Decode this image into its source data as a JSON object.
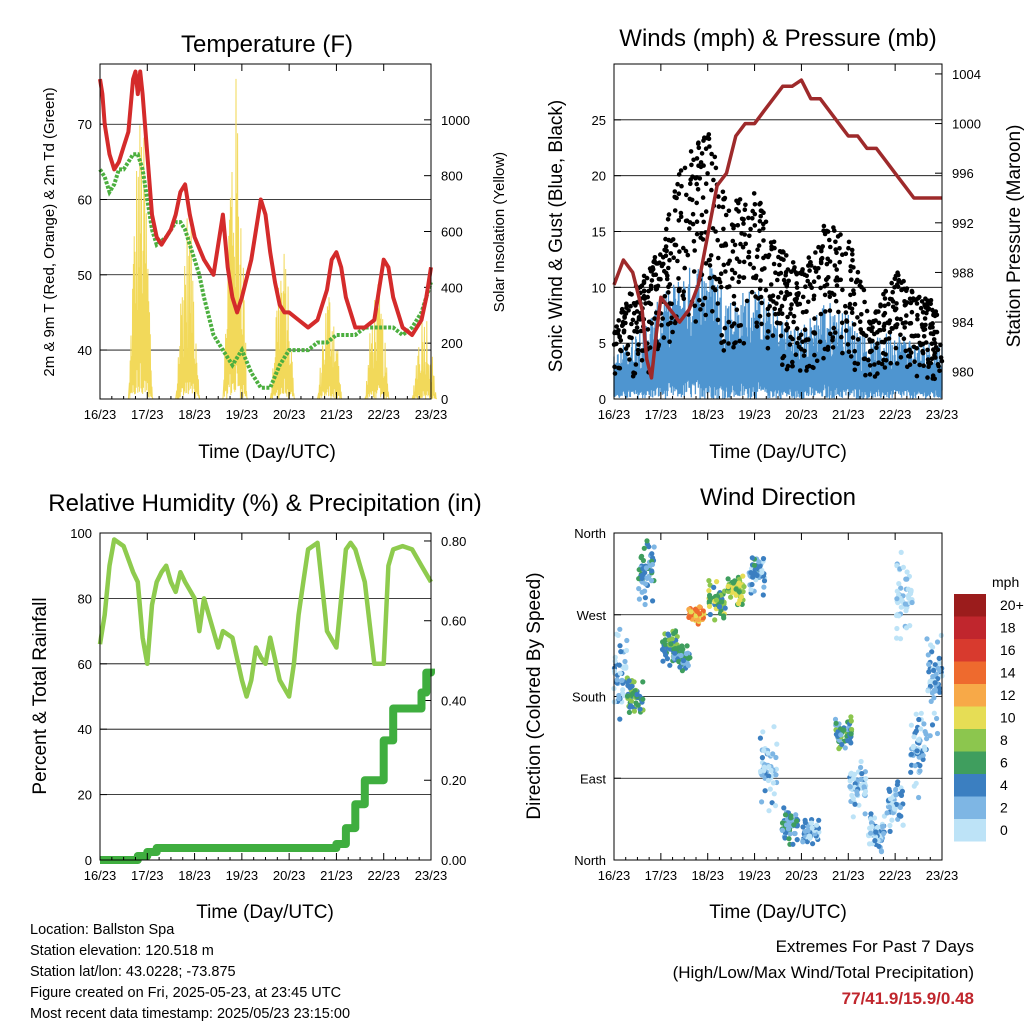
{
  "chart_data": [
    {
      "type": "line",
      "title": "Temperature (F)",
      "xlabel": "Time (Day/UTC)",
      "ylabel": "2m & 9m T (Red, Orange) & 2m Td (Green)",
      "y2label": "Solar Insolation (Yellow)",
      "categories": [
        "16/23",
        "17/23",
        "18/23",
        "19/23",
        "20/23",
        "21/23",
        "22/23",
        "23/23"
      ],
      "ylim": [
        33.5,
        78
      ],
      "yticks": [
        40,
        50,
        60,
        70
      ],
      "y2lim": [
        0,
        1200
      ],
      "y2ticks": [
        0,
        200,
        400,
        600,
        800,
        1000
      ],
      "series": [
        {
          "name": "2m T",
          "color": "#d42b2b",
          "x": [
            0,
            0.05,
            0.1,
            0.2,
            0.3,
            0.4,
            0.5,
            0.6,
            0.7,
            0.75,
            0.8,
            0.85,
            0.9,
            1.0,
            1.1,
            1.2,
            1.3,
            1.4,
            1.5,
            1.6,
            1.7,
            1.8,
            1.9,
            2.0,
            2.2,
            2.4,
            2.5,
            2.6,
            2.7,
            2.8,
            2.9,
            3.0,
            3.2,
            3.4,
            3.5,
            3.6,
            3.7,
            3.8,
            3.9,
            4.0,
            4.2,
            4.4,
            4.6,
            4.8,
            4.9,
            5.0,
            5.1,
            5.2,
            5.4,
            5.6,
            5.8,
            5.9,
            6.0,
            6.1,
            6.2,
            6.4,
            6.6,
            6.8,
            6.9,
            7.0
          ],
          "values": [
            76,
            74,
            70,
            66,
            64,
            65,
            67,
            69,
            76,
            77,
            74,
            77,
            74,
            66,
            58,
            55,
            54,
            55,
            56,
            58,
            61,
            62,
            58,
            55,
            52,
            50,
            54,
            58,
            51,
            47,
            45,
            47,
            52,
            60,
            58,
            53,
            49,
            46,
            45,
            45,
            44,
            43,
            44,
            48,
            52,
            53,
            51,
            47,
            43,
            43,
            44,
            48,
            52,
            51,
            47,
            43,
            42,
            44,
            47,
            51
          ]
        },
        {
          "name": "2m Td",
          "color": "#4caf3f",
          "x": [
            0,
            0.1,
            0.2,
            0.3,
            0.4,
            0.5,
            0.6,
            0.7,
            0.8,
            0.9,
            1.0,
            1.1,
            1.2,
            1.4,
            1.6,
            1.7,
            1.8,
            1.9,
            2.0,
            2.1,
            2.2,
            2.4,
            2.6,
            2.8,
            3.0,
            3.2,
            3.4,
            3.6,
            3.8,
            4.0,
            4.2,
            4.4,
            4.6,
            4.8,
            5.0,
            5.2,
            5.4,
            5.6,
            5.8,
            6.0,
            6.2,
            6.4,
            6.6,
            6.8,
            7.0
          ],
          "values": [
            64,
            63,
            61,
            62,
            64,
            64,
            65,
            66,
            66,
            64,
            60,
            56,
            54,
            55,
            57,
            57,
            56,
            54,
            52,
            50,
            47,
            42,
            40,
            38,
            40,
            37,
            35,
            35,
            38,
            40,
            40,
            40,
            41,
            41,
            42,
            42,
            42,
            43,
            43,
            43,
            43,
            42,
            43,
            45,
            49
          ]
        }
      ],
      "insolation": {
        "name": "Solar Insolation",
        "color": "#f2d95a",
        "peaks": [
          {
            "day": 0.86,
            "value": 1050
          },
          {
            "day": 1.86,
            "value": 700
          },
          {
            "day": 2.86,
            "value": 1180
          },
          {
            "day": 3.86,
            "value": 560
          },
          {
            "day": 4.86,
            "value": 420
          },
          {
            "day": 5.86,
            "value": 420
          },
          {
            "day": 6.86,
            "value": 340
          }
        ]
      }
    },
    {
      "type": "scatter",
      "title": "Winds (mph) & Pressure (mb)",
      "xlabel": "Time (Day/UTC)",
      "ylabel": "Sonic Wind & Gust (Blue, Black)",
      "y2label": "Station Pressure (Maroon)",
      "categories": [
        "16/23",
        "17/23",
        "18/23",
        "19/23",
        "20/23",
        "21/23",
        "22/23",
        "23/23"
      ],
      "ylim": [
        0,
        30
      ],
      "yticks": [
        0,
        5,
        10,
        15,
        20,
        25
      ],
      "y2lim": [
        977.8,
        1004.8
      ],
      "y2ticks": [
        980,
        984,
        988,
        992,
        996,
        1000,
        1004
      ],
      "gust_envelope": {
        "x": [
          0,
          0.5,
          1,
          1.5,
          2,
          2.5,
          3,
          3.5,
          4,
          4.5,
          5,
          5.5,
          6,
          6.5,
          7
        ],
        "values": [
          7,
          10,
          13,
          21,
          23,
          17,
          18,
          13,
          11,
          15,
          14,
          7,
          11,
          9,
          8
        ]
      },
      "wind_envelope": {
        "x": [
          0,
          0.5,
          1,
          1.5,
          2,
          2.5,
          3,
          3.5,
          4,
          4.5,
          5,
          5.5,
          6,
          6.5,
          7
        ],
        "values": [
          3,
          5,
          7,
          9,
          10,
          7,
          8,
          6,
          5,
          7,
          6,
          4,
          5,
          4,
          4
        ]
      },
      "pressure": {
        "name": "Station Pressure",
        "color": "#9e2a2b",
        "x": [
          0,
          0.2,
          0.4,
          0.6,
          0.7,
          0.8,
          0.9,
          1.0,
          1.2,
          1.4,
          1.6,
          1.8,
          2.0,
          2.2,
          2.4,
          2.6,
          2.8,
          3.0,
          3.2,
          3.4,
          3.6,
          3.8,
          4.0,
          4.2,
          4.4,
          4.6,
          4.8,
          5.0,
          5.2,
          5.4,
          5.6,
          5.8,
          6.0,
          6.2,
          6.4,
          6.6,
          6.8,
          7.0
        ],
        "values": [
          987,
          989,
          988,
          985,
          981,
          979.5,
          983,
          986,
          985,
          984,
          985,
          987,
          991,
          995,
          996,
          999,
          1000,
          1000,
          1001,
          1002,
          1003,
          1003,
          1003.5,
          1002,
          1002,
          1001,
          1000,
          999,
          999,
          998,
          998,
          997,
          996,
          995,
          994,
          994,
          994,
          994
        ]
      }
    },
    {
      "type": "line",
      "title": "Relative Humidity (%) & Precipitation (in)",
      "xlabel": "Time (Day/UTC)",
      "ylabel": "Percent & Total Rainfall",
      "categories": [
        "16/23",
        "17/23",
        "18/23",
        "19/23",
        "20/23",
        "21/23",
        "22/23",
        "23/23"
      ],
      "ylim": [
        0,
        100
      ],
      "yticks": [
        0,
        20,
        40,
        60,
        80,
        100
      ],
      "y2lim": [
        0,
        0.82
      ],
      "y2ticks": [
        0.0,
        0.2,
        0.4,
        0.6,
        0.8
      ],
      "series": [
        {
          "name": "Relative Humidity",
          "color": "#8ecb4e",
          "x": [
            0,
            0.1,
            0.2,
            0.3,
            0.5,
            0.7,
            0.8,
            0.9,
            1.0,
            1.1,
            1.2,
            1.3,
            1.4,
            1.5,
            1.6,
            1.7,
            1.8,
            2.0,
            2.1,
            2.2,
            2.4,
            2.5,
            2.6,
            2.8,
            3.0,
            3.1,
            3.2,
            3.3,
            3.4,
            3.5,
            3.6,
            3.8,
            4.0,
            4.1,
            4.2,
            4.3,
            4.4,
            4.6,
            4.8,
            5.0,
            5.2,
            5.3,
            5.4,
            5.6,
            5.8,
            6.0,
            6.1,
            6.2,
            6.4,
            6.6,
            6.8,
            7.0
          ],
          "values": [
            66,
            75,
            90,
            98,
            96,
            88,
            85,
            68,
            60,
            78,
            85,
            88,
            90,
            85,
            82,
            88,
            85,
            80,
            70,
            80,
            70,
            65,
            70,
            68,
            55,
            50,
            55,
            65,
            62,
            60,
            68,
            55,
            50,
            60,
            75,
            85,
            95,
            97,
            70,
            65,
            95,
            97,
            95,
            85,
            60,
            60,
            90,
            95,
            96,
            95,
            90,
            85
          ]
        },
        {
          "name": "Total Rainfall",
          "color": "#3fae3f",
          "x": [
            0,
            0.4,
            0.8,
            1.0,
            1.2,
            2,
            3,
            4,
            4.9,
            5.0,
            5.2,
            5.4,
            5.6,
            5.8,
            6.0,
            6.2,
            6.4,
            6.6,
            6.8,
            6.9,
            7.0
          ],
          "values": [
            0,
            0,
            0.01,
            0.02,
            0.03,
            0.03,
            0.03,
            0.03,
            0.03,
            0.04,
            0.08,
            0.14,
            0.2,
            0.2,
            0.3,
            0.38,
            0.38,
            0.38,
            0.42,
            0.47,
            0.48
          ]
        }
      ]
    },
    {
      "type": "scatter",
      "title": "Wind Direction",
      "xlabel": "Time (Day/UTC)",
      "ylabel": "Direction (Colored By Speed)",
      "categories": [
        "16/23",
        "17/23",
        "18/23",
        "19/23",
        "20/23",
        "21/23",
        "22/23",
        "23/23"
      ],
      "ylim": [
        0,
        360
      ],
      "ytick_labels": [
        "North",
        "East",
        "South",
        "West",
        "North"
      ],
      "yticks": [
        0,
        90,
        180,
        270,
        360
      ],
      "colorbar": {
        "title": "mph",
        "labels": [
          "20+",
          "18",
          "16",
          "14",
          "12",
          "10",
          "8",
          "6",
          "4",
          "2",
          "0"
        ],
        "colors": [
          "#9b1c1c",
          "#c0262d",
          "#d83a2e",
          "#ee6a2e",
          "#f7a948",
          "#e6dd55",
          "#8cc64e",
          "#3f9e5e",
          "#3b7fc1",
          "#7eb6e4",
          "#bde3f7"
        ]
      },
      "clusters": [
        {
          "day": 0.1,
          "dir": 200,
          "spread": 60,
          "speed": 3
        },
        {
          "day": 0.45,
          "dir": 180,
          "spread": 25,
          "speed": 7
        },
        {
          "day": 0.7,
          "dir": 320,
          "spread": 45,
          "speed": 5
        },
        {
          "day": 1.2,
          "dir": 235,
          "spread": 25,
          "speed": 7
        },
        {
          "day": 1.45,
          "dir": 225,
          "spread": 20,
          "speed": 5
        },
        {
          "day": 1.75,
          "dir": 270,
          "spread": 12,
          "speed": 13
        },
        {
          "day": 2.2,
          "dir": 285,
          "spread": 25,
          "speed": 8
        },
        {
          "day": 2.6,
          "dir": 300,
          "spread": 20,
          "speed": 9
        },
        {
          "day": 3.05,
          "dir": 315,
          "spread": 25,
          "speed": 4
        },
        {
          "day": 3.3,
          "dir": 100,
          "spread": 60,
          "speed": 2
        },
        {
          "day": 3.75,
          "dir": 40,
          "spread": 25,
          "speed": 5
        },
        {
          "day": 4.2,
          "dir": 30,
          "spread": 20,
          "speed": 3
        },
        {
          "day": 4.9,
          "dir": 140,
          "spread": 25,
          "speed": 6
        },
        {
          "day": 5.2,
          "dir": 80,
          "spread": 40,
          "speed": 2
        },
        {
          "day": 5.6,
          "dir": 30,
          "spread": 30,
          "speed": 3
        },
        {
          "day": 6.0,
          "dir": 60,
          "spread": 35,
          "speed": 3
        },
        {
          "day": 6.2,
          "dir": 290,
          "spread": 60,
          "speed": 1
        },
        {
          "day": 6.5,
          "dir": 120,
          "spread": 60,
          "speed": 3
        },
        {
          "day": 6.85,
          "dir": 200,
          "spread": 70,
          "speed": 3
        }
      ]
    }
  ],
  "info": {
    "location": "Location: Ballston Spa",
    "elevation": "Station elevation: 120.518 m",
    "latlon": "Station lat/lon: 43.0228; -73.875",
    "created": "Figure created on Fri, 2025-05-23, at 23:45 UTC",
    "recent": "Most recent data timestamp: 2025/05/23 23:15:00"
  },
  "extremes": {
    "heading": "Extremes For Past 7 Days",
    "subheading": "(High/Low/Max Wind/Total Precipitation)",
    "values": "77/41.9/15.9/0.48"
  }
}
